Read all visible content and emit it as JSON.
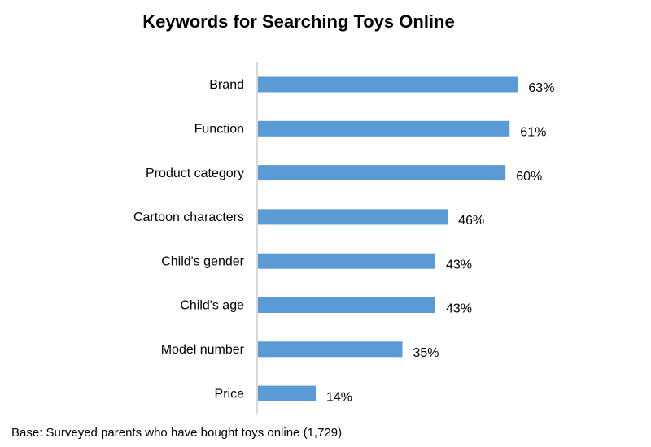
{
  "chart_data": {
    "type": "bar",
    "orientation": "horizontal",
    "title": "Keywords for Searching Toys Online",
    "categories": [
      "Brand",
      "Function",
      "Product category",
      "Cartoon characters",
      "Child's gender",
      "Child's age",
      "Model number",
      "Price"
    ],
    "values": [
      63,
      61,
      60,
      46,
      43,
      43,
      35,
      14
    ],
    "value_labels": [
      "63%",
      "61%",
      "60%",
      "46%",
      "43%",
      "43%",
      "35%",
      "14%"
    ],
    "xlim": [
      0,
      65
    ],
    "grid": false,
    "legend": "none",
    "bar_color": "#5b9bd5",
    "axis_color": "#d9d9d9"
  },
  "footnote": "Base: Surveyed parents who have bought toys online (1,729)"
}
